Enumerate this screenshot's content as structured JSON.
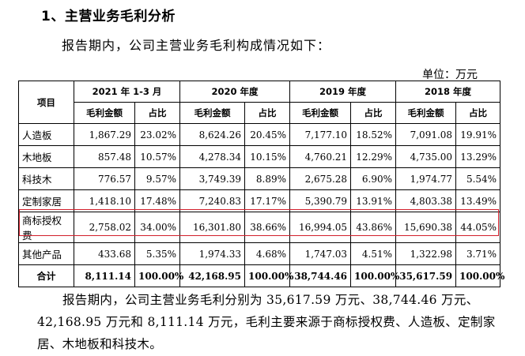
{
  "section_heading": "1、主营业务毛利分析",
  "intro_text": "报告期内，公司主营业务毛利构成情况如下：",
  "unit_text": "单位：万元",
  "table": {
    "item_header": "项目",
    "periods": [
      "2021 年 1-3 月",
      "2020 年度",
      "2019 年度",
      "2018 年度"
    ],
    "amount_header": "毛利金额",
    "ratio_header": "占比",
    "rows": [
      {
        "item": "人造板",
        "v": [
          "1,867.29",
          "23.02%",
          "8,624.26",
          "20.45%",
          "7,177.10",
          "18.52%",
          "7,091.08",
          "19.91%"
        ]
      },
      {
        "item": "木地板",
        "v": [
          "857.48",
          "10.57%",
          "4,278.34",
          "10.15%",
          "4,760.21",
          "12.29%",
          "4,735.00",
          "13.29%"
        ]
      },
      {
        "item": "科技木",
        "v": [
          "776.57",
          "9.57%",
          "3,749.39",
          "8.89%",
          "2,675.28",
          "6.90%",
          "1,974.77",
          "5.54%"
        ]
      },
      {
        "item": "定制家居",
        "v": [
          "1,418.10",
          "17.48%",
          "7,240.83",
          "17.17%",
          "5,390.79",
          "13.91%",
          "4,803.38",
          "13.49%"
        ]
      },
      {
        "item": "商标授权费",
        "v": [
          "2,758.02",
          "34.00%",
          "16,301.80",
          "38.66%",
          "16,994.05",
          "43.86%",
          "15,690.38",
          "44.05%"
        ]
      },
      {
        "item": "其他产品",
        "v": [
          "433.68",
          "5.35%",
          "1,974.33",
          "4.68%",
          "1,747.03",
          "4.51%",
          "1,322.98",
          "3.71%"
        ]
      }
    ],
    "total": {
      "item": "合计",
      "v": [
        "8,111.14",
        "100.00%",
        "42,168.95",
        "100.00%",
        "38,744.46",
        "100.00%",
        "35,617.59",
        "100.00%"
      ]
    }
  },
  "summary_text": "报告期内，公司主营业务毛利分别为 35,617.59 万元、38,744.46 万元、42,168.95 万元和 8,111.14 万元，毛利主要来源于商标授权费、人造板、定制家居、木地板和科技木。",
  "colors": {
    "highlight_border": "#d21f2b"
  }
}
